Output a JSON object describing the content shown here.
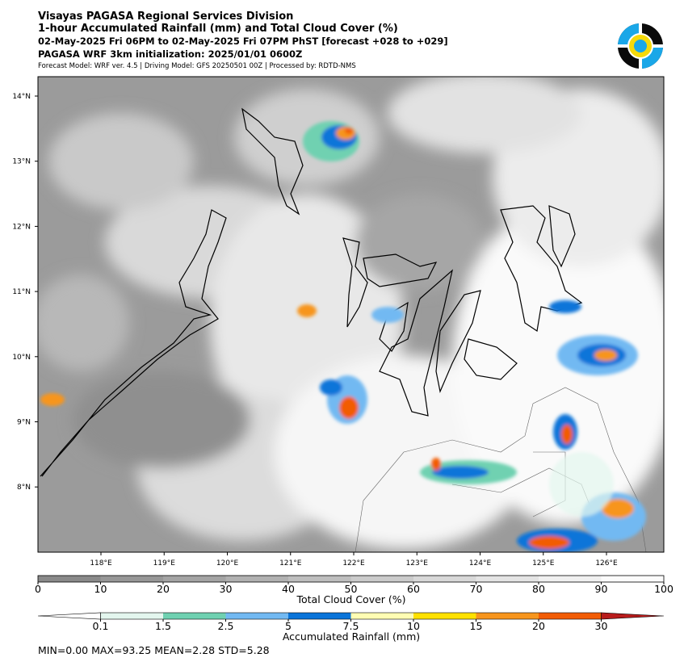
{
  "header": {
    "title": "Visayas PAGASA Regional Services Division",
    "subtitle": "1-hour Accumulated Rainfall (mm) and Total Cloud Cover (%)",
    "period": "02-May-2025 Fri 06PM to 02-May-2025 Fri 07PM PhST [forecast +028 to +029]",
    "initialization": "PAGASA WRF 3km initialization: 2025/01/01 0600Z",
    "model_info": "Forecast Model: WRF ver. 4.5 | Driving Model: GFS 20250501 00Z | Processed by: RDTD-NMS"
  },
  "map": {
    "lon_labels": [
      "118°E",
      "119°E",
      "120°E",
      "121°E",
      "122°E",
      "123°E",
      "124°E",
      "125°E",
      "126°E"
    ],
    "lat_labels": [
      "14°N",
      "13°N",
      "12°N",
      "11°N",
      "10°N",
      "9°N",
      "8°N"
    ]
  },
  "cloud_colorbar": {
    "label": "Total Cloud Cover (%)",
    "ticks": [
      0,
      10,
      20,
      30,
      40,
      50,
      60,
      70,
      80,
      90,
      100
    ],
    "colors": [
      "#8a8a8a",
      "#979797",
      "#a4a4a4",
      "#b1b1b1",
      "#bebebe",
      "#cbcbcb",
      "#d8d8d8",
      "#e4e4e4",
      "#f0f0f0",
      "#fbfbfb"
    ]
  },
  "rain_colorbar": {
    "label": "Accumulated Rainfall (mm)",
    "ticks": [
      0.1,
      1.5,
      2.5,
      5,
      7.5,
      10,
      15,
      20,
      30
    ],
    "colors": [
      "#e3f6ee",
      "#6fd1b1",
      "#72b9f2",
      "#0a74d9",
      "#fffdb3",
      "#ffe100",
      "#f7951d",
      "#f25c05"
    ],
    "under_color": "#ffffff",
    "over_color": "#b81c1c"
  },
  "stats": "MIN=0.00   MAX=93.25   MEAN=2.28   STD=5.28"
}
